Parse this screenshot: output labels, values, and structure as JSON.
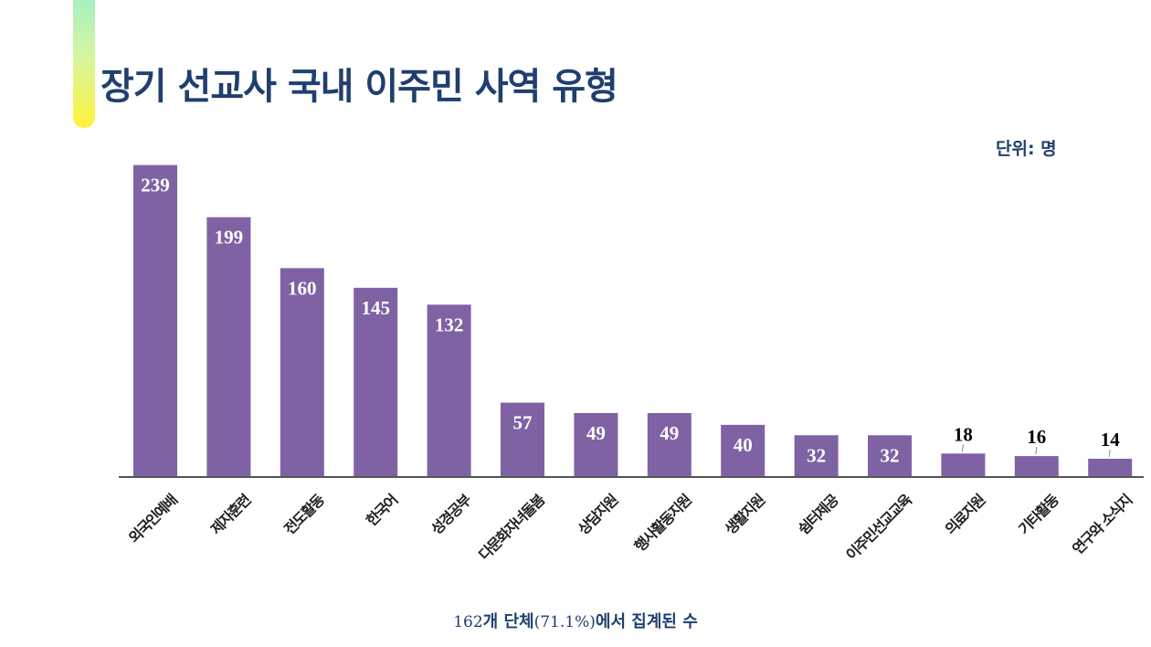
{
  "title": "장기 선교사 국내 이주민 사역 유형",
  "unit_label": "단위: 명",
  "footnote": {
    "count": "162",
    "text1": "개 단체",
    "percent": "(71.1%)",
    "text2": "에서 집계된 수"
  },
  "colors": {
    "bar": "#7f62a4",
    "title": "#1f3f6e",
    "axis": "#555555",
    "inner_label": "#ffffff",
    "outer_label": "#000000"
  },
  "chart_data": {
    "type": "bar",
    "title": "장기 선교사 국내 이주민 사역 유형",
    "xlabel": "",
    "ylabel": "",
    "unit": "명",
    "ylim": [
      0,
      245
    ],
    "grid": false,
    "legend": "none",
    "categories": [
      "외국인예배",
      "제자훈련",
      "전도활동",
      "한국어",
      "성경공부",
      "다문화자녀돌봄",
      "상담지원",
      "행사활동지원",
      "생활지원",
      "쉼터제공",
      "이주민선교교육",
      "의료지원",
      "기타활동",
      "연구와 소식지"
    ],
    "values": [
      239,
      199,
      160,
      145,
      132,
      57,
      49,
      49,
      40,
      32,
      32,
      18,
      16,
      14
    ]
  }
}
